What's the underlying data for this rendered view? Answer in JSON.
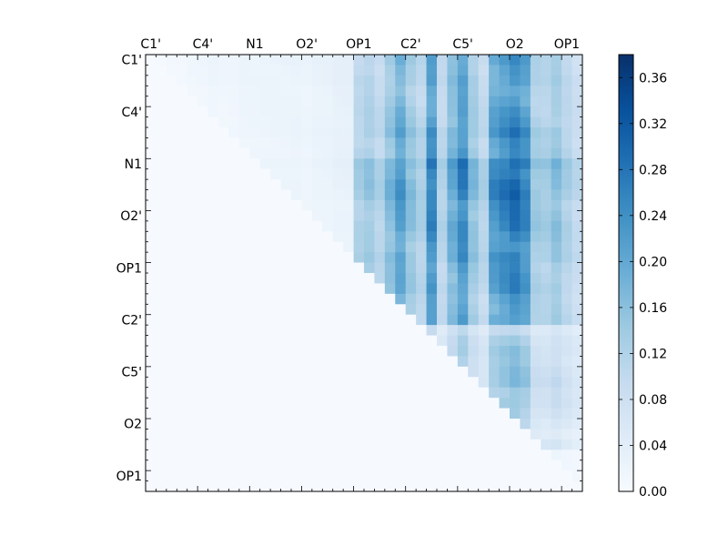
{
  "chart_data": {
    "type": "heatmap",
    "title": "",
    "xlabel": "",
    "ylabel": "",
    "x_tick_labels": [
      "C1'",
      "C4'",
      "N1",
      "O2'",
      "OP1",
      "C2'",
      "C5'",
      "O2",
      "OP1"
    ],
    "y_tick_labels": [
      "C1'",
      "C4'",
      "N1",
      "O2'",
      "OP1",
      "C2'",
      "C5'",
      "O2",
      "OP1"
    ],
    "matrix_size": 42,
    "tick_every": 5,
    "colormap": "Blues",
    "vmin": 0.0,
    "vmax": 0.38,
    "colorbar_ticks": [
      "0.00",
      "0.04",
      "0.08",
      "0.12",
      "0.16",
      "0.20",
      "0.24",
      "0.28",
      "0.32",
      "0.36"
    ],
    "colorbar_tick_values": [
      0.0,
      0.04,
      0.08,
      0.12,
      0.16,
      0.2,
      0.24,
      0.28,
      0.32,
      0.36
    ],
    "colorbar_position": "right",
    "grid": false,
    "column_profile": [
      0.03,
      0.03,
      0.04,
      0.04,
      0.05,
      0.05,
      0.06,
      0.05,
      0.05,
      0.06,
      0.06,
      0.06,
      0.06,
      0.06,
      0.06,
      0.05,
      0.06,
      0.06,
      0.07,
      0.07,
      0.15,
      0.17,
      0.14,
      0.2,
      0.26,
      0.19,
      0.15,
      0.3,
      0.14,
      0.23,
      0.3,
      0.19,
      0.14,
      0.28,
      0.31,
      0.34,
      0.3,
      0.17,
      0.16,
      0.19,
      0.15,
      0.12
    ],
    "row_scale": [
      0.75,
      0.72,
      0.74,
      0.7,
      0.72,
      0.76,
      0.78,
      0.85,
      0.78,
      0.8,
      0.98,
      0.93,
      0.96,
      0.95,
      0.88,
      0.88,
      0.9,
      0.86,
      0.82,
      0.86,
      0.8,
      0.8,
      0.8,
      0.72,
      0.72,
      0.75,
      0.35,
      0.45,
      0.5,
      0.48,
      0.52,
      0.55,
      0.48,
      0.5,
      0.45,
      0.38,
      0.3,
      0.4,
      0.1,
      0.1,
      0.1,
      0.02
    ],
    "upper_block_fade": 0.35
  }
}
